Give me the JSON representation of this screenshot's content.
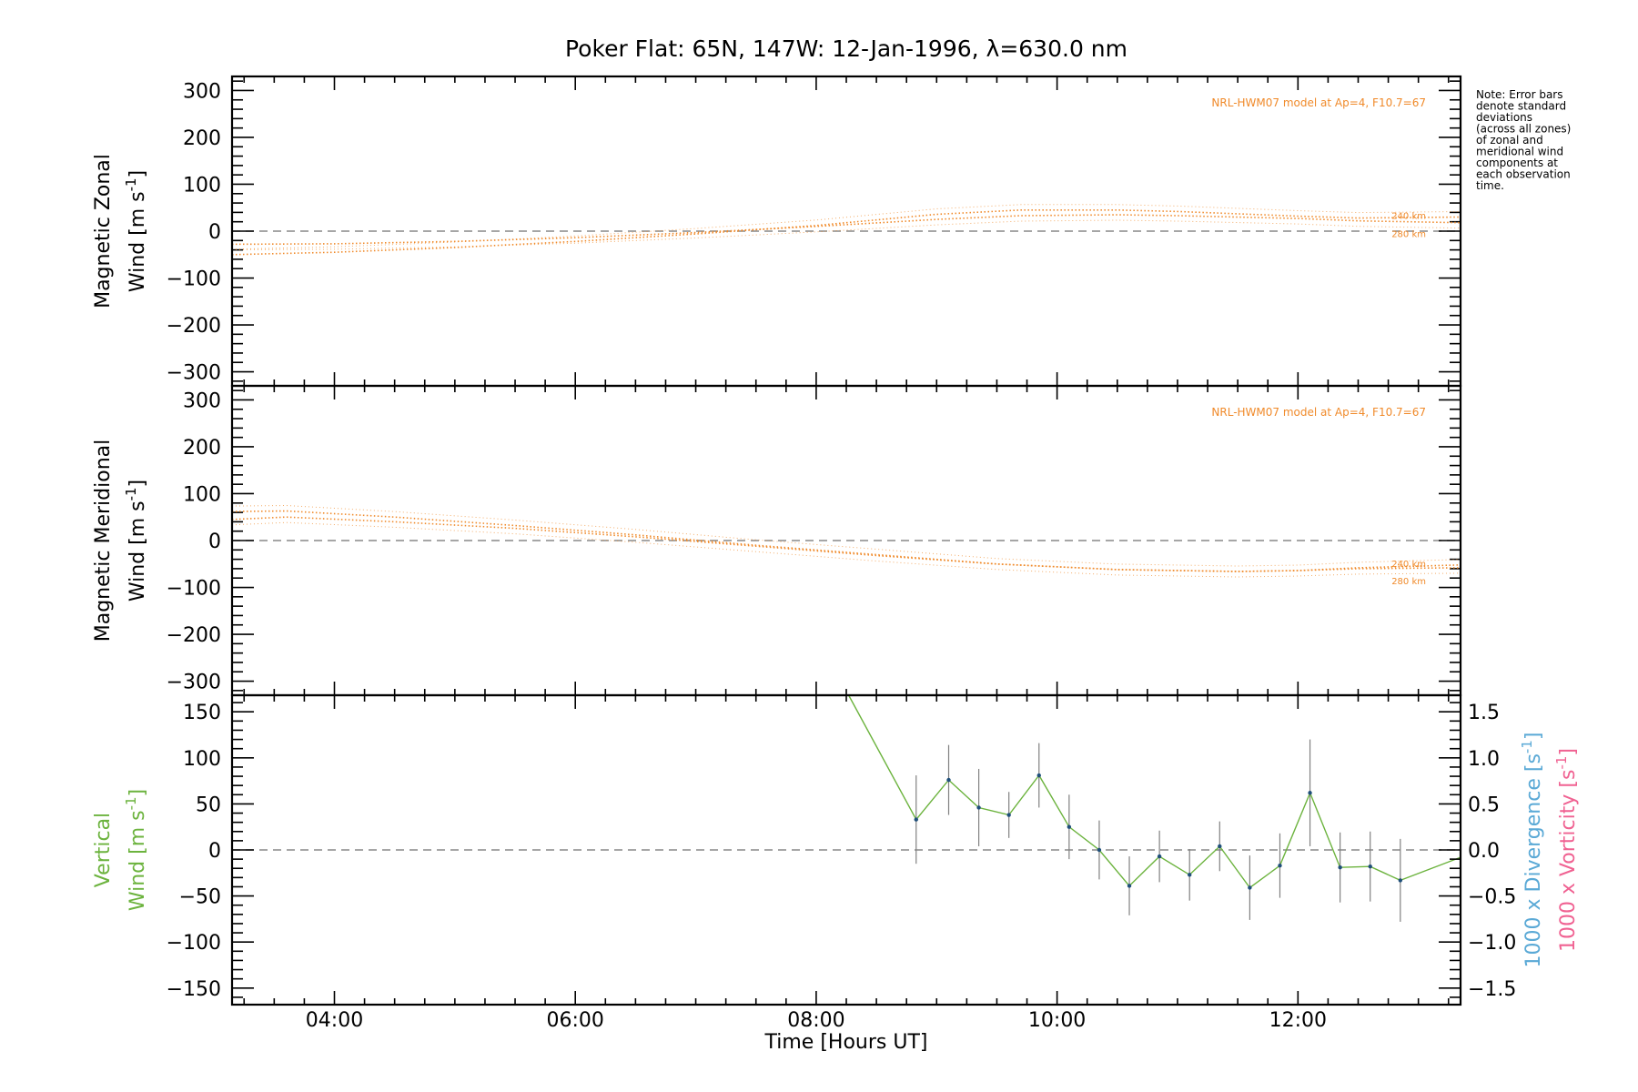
{
  "colors": {
    "model": "#f08a2a",
    "vertical": "#6cb33e",
    "divergence": "#5aa9d6",
    "vorticity": "#f06292",
    "errorbar": "#808080",
    "zeroline": "#888888"
  },
  "title": "Poker Flat: 65N, 147W: 12-Jan-1996, λ=630.0 nm",
  "note": [
    "Note: Error bars",
    "denote standard",
    "deviations",
    "(across all zones)",
    "of zonal and",
    "meridional wind",
    "components at",
    "each observation",
    "time."
  ],
  "xaxis": {
    "label": "Time [Hours UT]",
    "range": [
      3.15,
      13.35
    ],
    "ticks": [
      4,
      6,
      8,
      10,
      12
    ],
    "tick_labels": [
      "04:00",
      "06:00",
      "08:00",
      "10:00",
      "12:00"
    ]
  },
  "chart_data": [
    {
      "type": "line",
      "panel": "zonal",
      "ylabel_line1": "Magnetic Zonal",
      "ylabel_line2": "Wind [m s",
      "ylabel_exp": "-1",
      "ylabel_close": "]",
      "ylim": [
        -330,
        330
      ],
      "yticks": [
        -300,
        -200,
        -100,
        0,
        100,
        200,
        300
      ],
      "ytick_labels": [
        "−300",
        "−200",
        "−100",
        "0",
        "100",
        "200",
        "300"
      ],
      "model_label": "NRL-HWM07 model at Ap=4, F10.7=67",
      "alt_labels": [
        "240 km",
        "280 km"
      ],
      "series": [
        {
          "name": "240 km",
          "x": [
            3.15,
            4.0,
            5.0,
            6.0,
            7.0,
            8.0,
            9.0,
            9.7,
            10.5,
            11.0,
            12.0,
            12.5,
            13.35
          ],
          "y": [
            -50,
            -45,
            -35,
            -22,
            -6,
            12,
            36,
            45,
            45,
            42,
            32,
            28,
            30
          ]
        },
        {
          "name": "280 km",
          "x": [
            3.15,
            4.0,
            5.0,
            6.0,
            7.0,
            8.0,
            9.0,
            9.7,
            10.5,
            11.0,
            12.0,
            12.5,
            13.35
          ],
          "y": [
            -28,
            -27,
            -22,
            -14,
            -3,
            10,
            25,
            33,
            35,
            33,
            27,
            22,
            18
          ]
        }
      ]
    },
    {
      "type": "line",
      "panel": "meridional",
      "ylabel_line1": "Magnetic Meridional",
      "ylabel_line2": "Wind [m s",
      "ylabel_exp": "-1",
      "ylabel_close": "]",
      "ylim": [
        -330,
        330
      ],
      "yticks": [
        -300,
        -200,
        -100,
        0,
        100,
        200,
        300
      ],
      "ytick_labels": [
        "−300",
        "−200",
        "−100",
        "0",
        "100",
        "200",
        "300"
      ],
      "model_label": "NRL-HWM07 model at Ap=4, F10.7=67",
      "alt_labels": [
        "240 km",
        "280 km"
      ],
      "series": [
        {
          "name": "240 km",
          "x": [
            3.15,
            3.6,
            4.5,
            5.5,
            6.5,
            7.5,
            8.5,
            9.5,
            10.5,
            11.5,
            12.0,
            12.5,
            13.35
          ],
          "y": [
            62,
            63,
            50,
            32,
            12,
            -10,
            -30,
            -50,
            -62,
            -66,
            -64,
            -58,
            -52
          ]
        },
        {
          "name": "280 km",
          "x": [
            3.15,
            3.6,
            4.5,
            5.5,
            6.5,
            7.5,
            8.5,
            9.5,
            10.5,
            11.5,
            12.0,
            12.5,
            13.35
          ],
          "y": [
            45,
            50,
            40,
            26,
            8,
            -12,
            -32,
            -50,
            -62,
            -66,
            -64,
            -60,
            -58
          ]
        }
      ]
    },
    {
      "type": "line",
      "panel": "vertical",
      "ylabel_line1": "Vertical",
      "ylabel_line2": "Wind [m s",
      "ylabel_exp": "-1",
      "ylabel_close": "]",
      "ylim": [
        -168,
        168
      ],
      "yticks": [
        -150,
        -100,
        -50,
        0,
        50,
        100,
        150
      ],
      "ytick_labels": [
        "−150",
        "−100",
        "−50",
        "0",
        "50",
        "100",
        "150"
      ],
      "right_axis": {
        "ylim": [
          -1.68,
          1.68
        ],
        "ticks": [
          -1.5,
          -1.0,
          -0.5,
          0.0,
          0.5,
          1.0,
          1.5
        ],
        "tick_labels": [
          "−1.5",
          "−1.0",
          "−0.5",
          "0.0",
          "0.5",
          "1.0",
          "1.5"
        ],
        "label_div": "1000 x Divergence [s",
        "label_vor": "1000 x Vorticity [s",
        "label_exp": "-1",
        "label_close": "]"
      },
      "series": [
        {
          "name": "Vertical wind",
          "x": [
            8.27,
            8.83,
            9.1,
            9.35,
            9.6,
            9.85,
            10.1,
            10.35,
            10.6,
            10.85,
            11.1,
            11.35,
            11.6,
            11.85,
            12.1,
            12.35,
            12.6,
            12.85,
            13.35
          ],
          "y": [
            168,
            33,
            76,
            46,
            38,
            81,
            25,
            0,
            -39,
            -7,
            -27,
            4,
            -41,
            -17,
            62,
            -19,
            -18,
            -33,
            -8
          ],
          "err": [
            0,
            48,
            38,
            42,
            25,
            35,
            35,
            32,
            32,
            28,
            28,
            27,
            35,
            35,
            58,
            38,
            38,
            45,
            0
          ]
        }
      ]
    }
  ]
}
